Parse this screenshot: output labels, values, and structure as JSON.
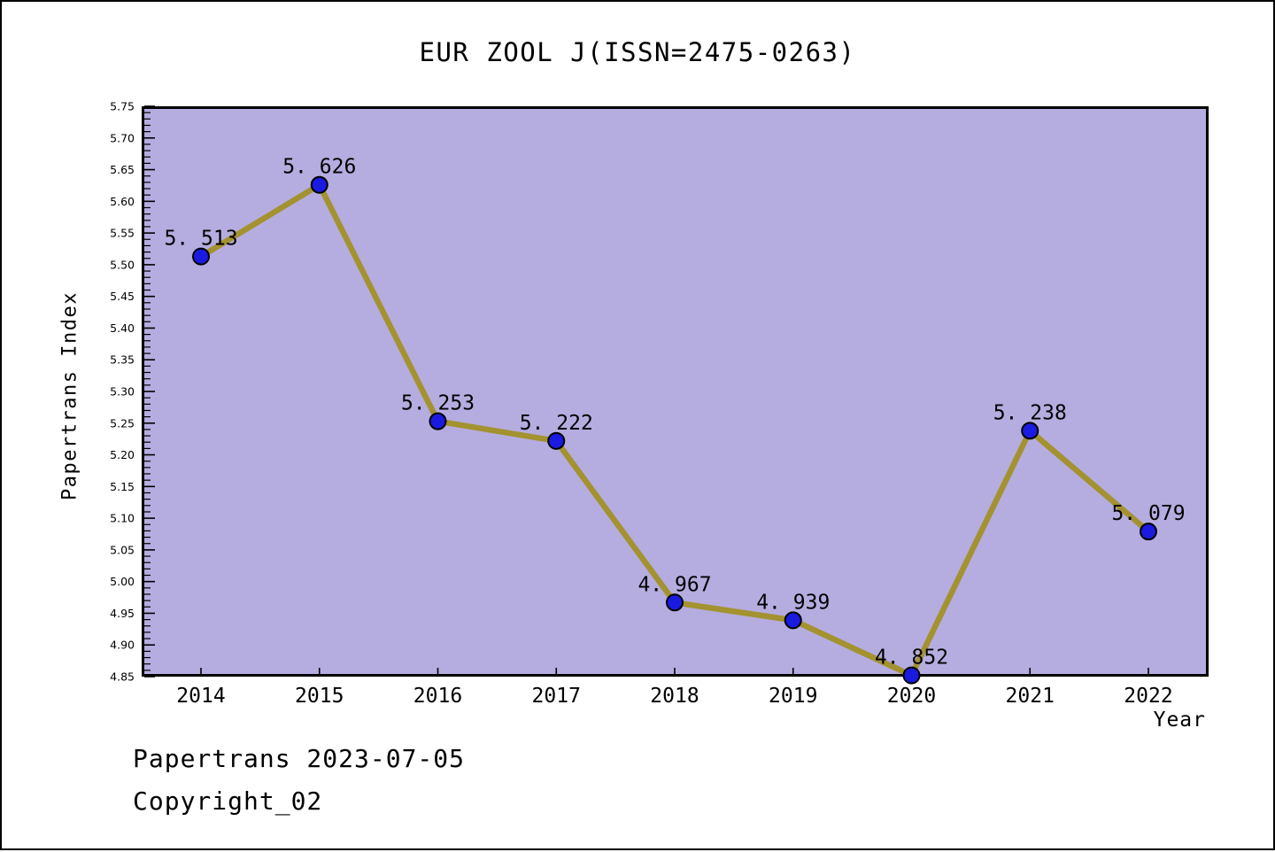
{
  "chart_data": {
    "type": "line",
    "title": "EUR ZOOL J(ISSN=2475-0263)",
    "xlabel": "Year",
    "ylabel": "Papertrans Index",
    "x": [
      2014,
      2015,
      2016,
      2017,
      2018,
      2019,
      2020,
      2021,
      2022
    ],
    "series": [
      {
        "name": "Papertrans Index",
        "values": [
          5.513,
          5.626,
          5.253,
          5.222,
          4.967,
          4.939,
          4.852,
          5.238,
          5.079
        ]
      }
    ],
    "ylim": [
      4.85,
      5.75
    ],
    "y_major_step": 0.05,
    "y_minor_step": 0.01,
    "grid": false,
    "legend": false,
    "point_labels_visible": true,
    "colors": {
      "page_background": "#ffffff",
      "plot_background": "#b5ade0",
      "line": "#a3922f",
      "marker_fill": "#1a1ae0",
      "marker_edge": "#000000",
      "axis": "#000000",
      "text": "#000000"
    }
  },
  "footer": {
    "source_line": "Papertrans 2023-07-05",
    "copyright_line": "Copyright_02"
  }
}
